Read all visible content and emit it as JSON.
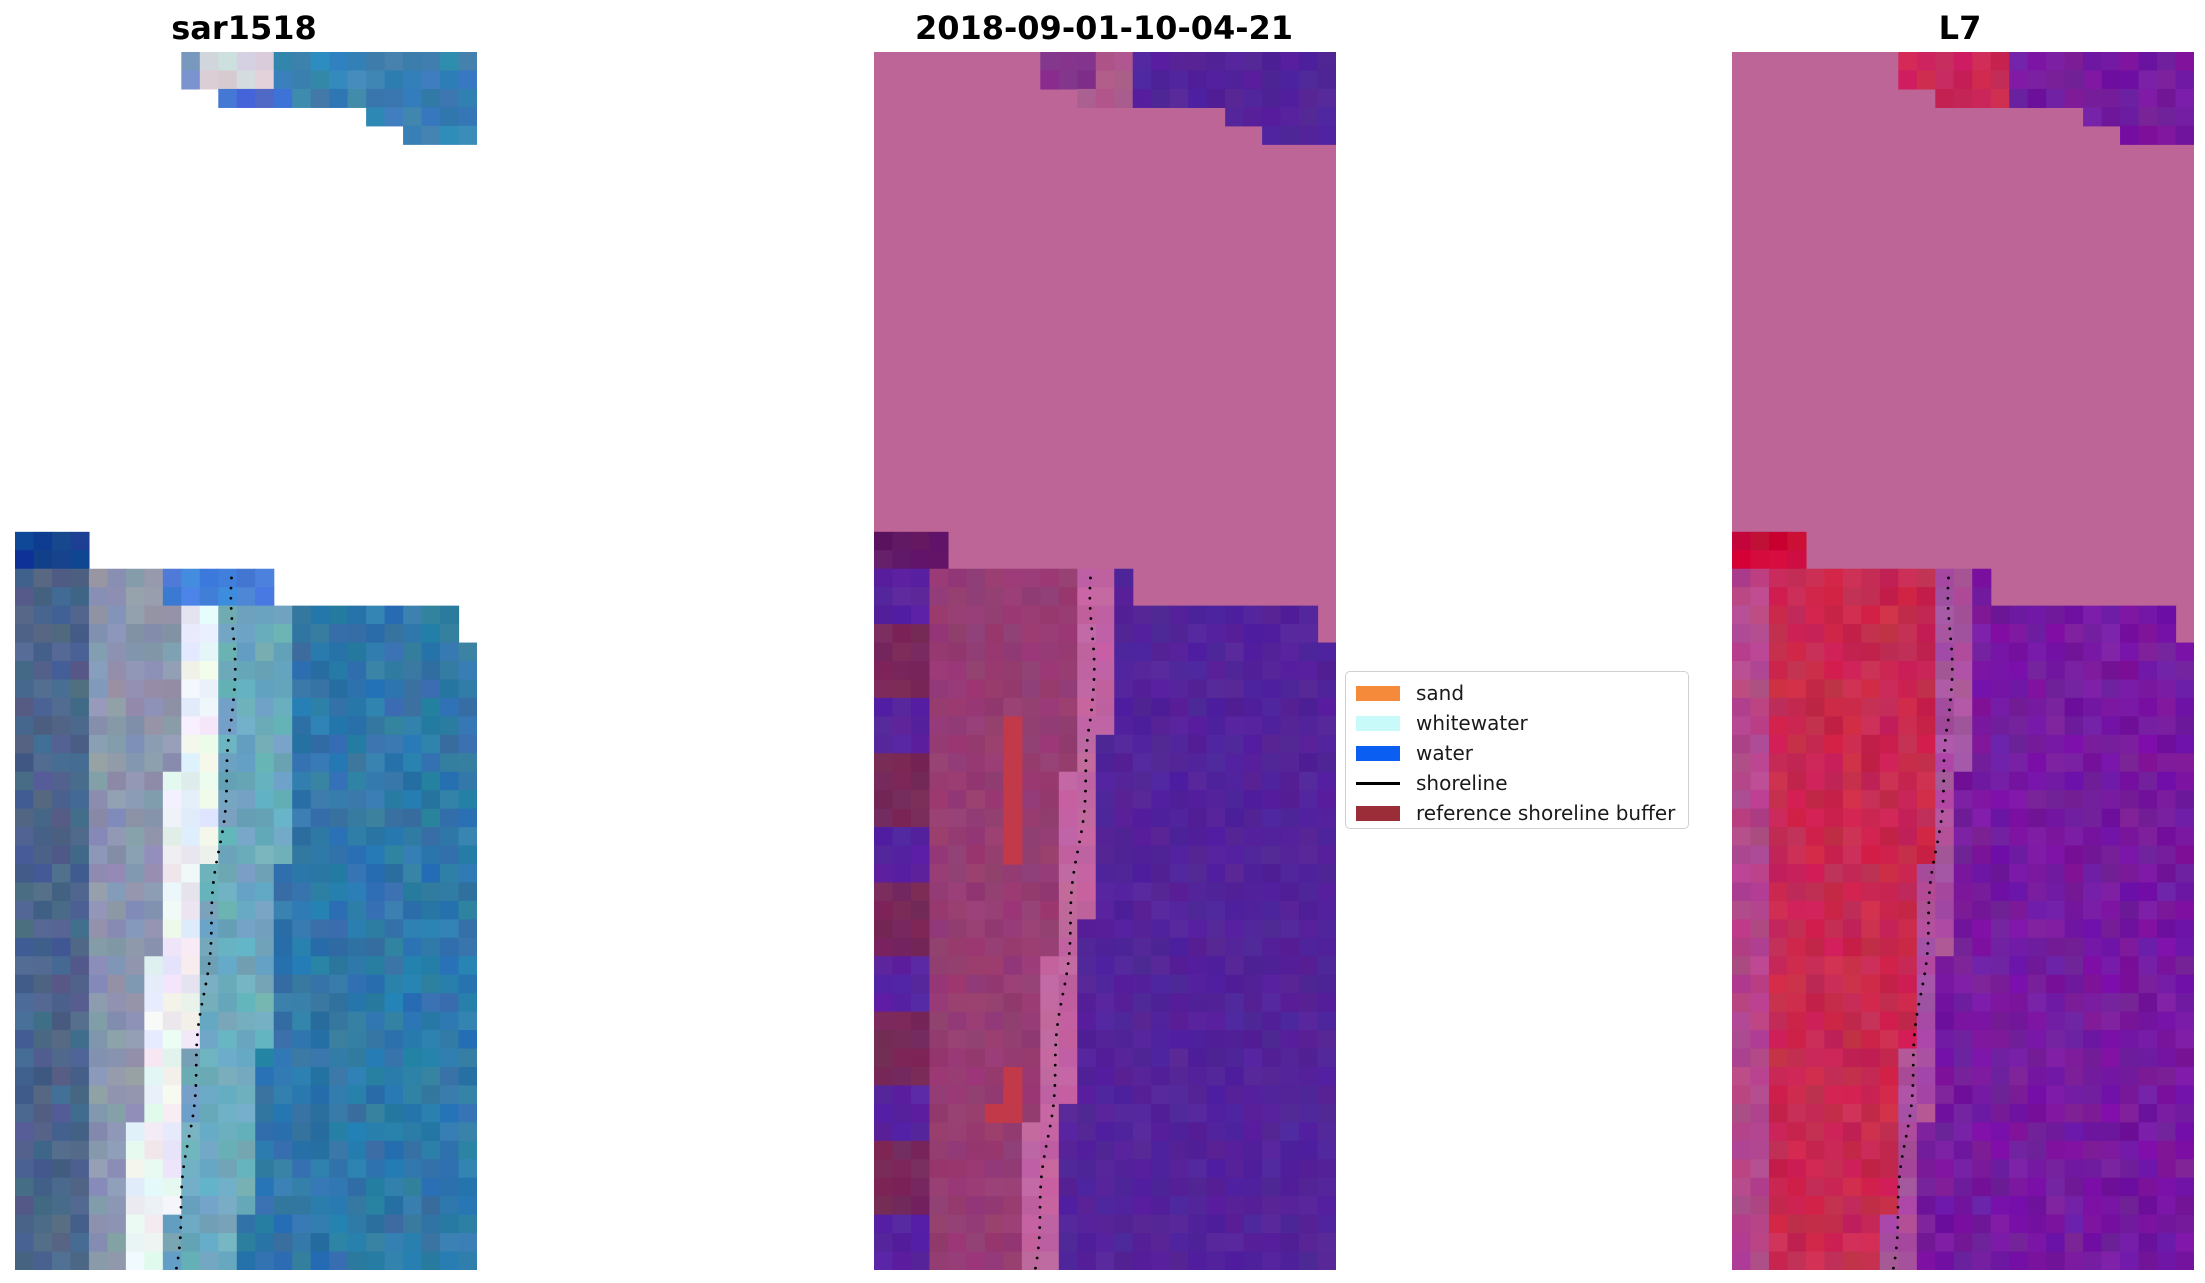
{
  "panels": [
    {
      "title": "sar1518",
      "style": "rgb"
    },
    {
      "title": "2018-09-01-10-04-21",
      "style": "classified"
    },
    {
      "title": "L7",
      "style": "index"
    }
  ],
  "legend": {
    "items": [
      {
        "label": "sand",
        "type": "patch",
        "color": "#f58b3a"
      },
      {
        "label": "whitewater",
        "type": "patch",
        "color": "#c8fafa"
      },
      {
        "label": "water",
        "type": "patch",
        "color": "#0a5ff2"
      },
      {
        "label": "shoreline",
        "type": "line",
        "color": "#000000"
      },
      {
        "label": "reference shoreline buffer",
        "type": "patch",
        "color": "#9b2d38"
      }
    ]
  },
  "colors": {
    "no_data_classified": "#bc6596",
    "water_classified": "#53239a",
    "no_data_index": "#bc6596",
    "shoreline_dots": "#000000"
  }
}
